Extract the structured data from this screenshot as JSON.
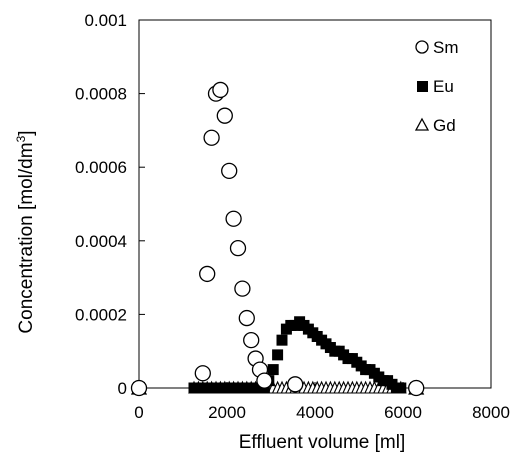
{
  "chart_data": {
    "type": "scatter",
    "title": "",
    "xlabel": "Effluent volume [ml]",
    "ylabel": "Concentration  [mol/dm",
    "ylabel_superscript": "3",
    "ylabel_suffix": "]",
    "xlim": [
      0,
      8000
    ],
    "ylim": [
      0,
      0.001
    ],
    "x_ticks": [
      0,
      2000,
      4000,
      6000,
      8000
    ],
    "y_ticks": [
      0,
      0.0002,
      0.0004,
      0.0006,
      0.0008,
      0.001
    ],
    "x_tick_labels": [
      "0",
      "2000",
      "4000",
      "6000",
      "8000"
    ],
    "y_tick_labels": [
      "0",
      "0.0002",
      "0.0004",
      "0.0006",
      "0.0008",
      "0.001"
    ],
    "grid": false,
    "legend_position": "top-right",
    "series": [
      {
        "name": "Sm",
        "marker": "open-circle",
        "color": "#000000",
        "x": [
          0,
          1450,
          1550,
          1650,
          1750,
          1850,
          1950,
          2050,
          2150,
          2250,
          2350,
          2450,
          2550,
          2650,
          2750,
          2850,
          3550,
          6300
        ],
        "y": [
          0,
          4e-05,
          0.00031,
          0.00068,
          0.0008,
          0.00081,
          0.00074,
          0.00059,
          0.00046,
          0.00038,
          0.00027,
          0.00019,
          0.00013,
          8e-05,
          5e-05,
          2e-05,
          1e-05,
          0
        ]
      },
      {
        "name": "Eu",
        "marker": "filled-square",
        "color": "#000000",
        "x": [
          0,
          1250,
          1350,
          1450,
          1550,
          1650,
          1750,
          1850,
          1950,
          2050,
          2150,
          2250,
          2350,
          2450,
          2550,
          2650,
          2750,
          2850,
          2950,
          3050,
          3150,
          3250,
          3350,
          3450,
          3550,
          3650,
          3750,
          3850,
          3950,
          4050,
          4150,
          4250,
          4350,
          4450,
          4550,
          4650,
          4750,
          4850,
          4950,
          5050,
          5150,
          5250,
          5350,
          5450,
          5550,
          5650,
          5750,
          5850,
          5950,
          6300
        ],
        "y": [
          0,
          0,
          0,
          0,
          0,
          0,
          0,
          0,
          0,
          0,
          0,
          0,
          0,
          0,
          0,
          0,
          0,
          0,
          2e-05,
          5e-05,
          9e-05,
          0.00013,
          0.00016,
          0.00017,
          0.00017,
          0.00018,
          0.00017,
          0.00016,
          0.00015,
          0.00014,
          0.00013,
          0.00012,
          0.00011,
          0.0001,
          0.0001,
          9e-05,
          8e-05,
          8e-05,
          7e-05,
          6e-05,
          5e-05,
          5e-05,
          4e-05,
          3e-05,
          2e-05,
          2e-05,
          1e-05,
          0,
          0,
          0
        ]
      },
      {
        "name": "Gd",
        "marker": "open-triangle",
        "color": "#000000",
        "x": [
          0,
          1250,
          1350,
          1450,
          1550,
          1650,
          1750,
          1850,
          1950,
          2050,
          2150,
          2250,
          2350,
          2450,
          2550,
          2650,
          2750,
          2850,
          2950,
          3050,
          3150,
          3250,
          3350,
          3450,
          3550,
          3650,
          3750,
          3850,
          3950,
          4050,
          4150,
          4250,
          4350,
          4450,
          4550,
          4650,
          4750,
          4850,
          4950,
          5050,
          5150,
          5250,
          5350,
          5450,
          5550,
          5650,
          5750,
          5850,
          5950,
          6300
        ],
        "y": [
          0,
          0,
          0,
          0,
          0,
          0,
          0,
          0,
          0,
          0,
          0,
          0,
          0,
          0,
          0,
          0,
          0,
          0,
          0,
          0,
          0,
          0,
          0,
          0,
          0,
          0,
          0,
          0,
          0,
          0,
          0,
          0,
          0,
          0,
          0,
          0,
          0,
          0,
          0,
          0,
          0,
          0,
          0,
          0,
          0,
          0,
          0,
          0,
          0,
          0
        ]
      }
    ]
  }
}
